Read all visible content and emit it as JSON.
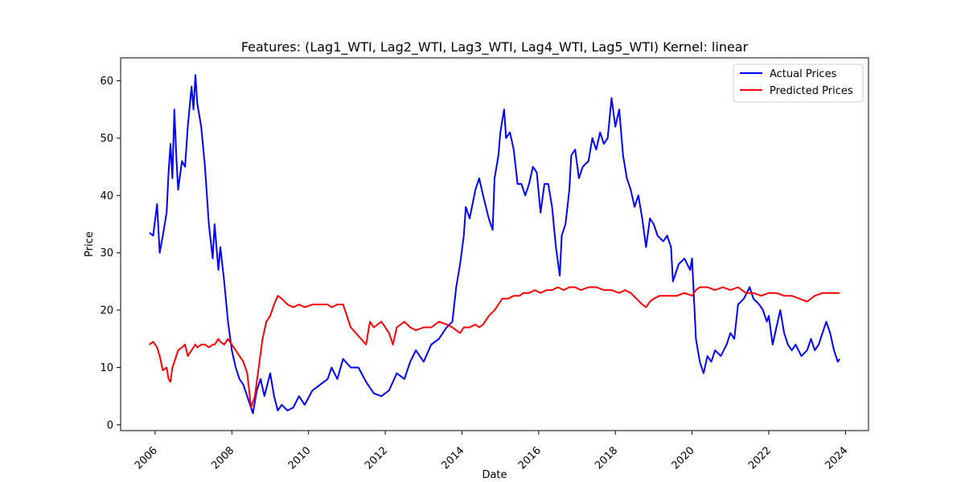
{
  "chart_data": {
    "type": "line",
    "title": "Features: (Lag1_WTI, Lag2_WTI, Lag3_WTI, Lag4_WTI, Lag5_WTI) Kernel: linear",
    "xlabel": "Date",
    "ylabel": "Price",
    "xlim": [
      2005.1,
      2024.6
    ],
    "ylim": [
      -1,
      64
    ],
    "x_ticks": [
      2006,
      2008,
      2010,
      2012,
      2014,
      2016,
      2018,
      2020,
      2022,
      2024
    ],
    "x_tick_labels": [
      "2006",
      "2008",
      "2010",
      "2012",
      "2014",
      "2016",
      "2018",
      "2020",
      "2022",
      "2024"
    ],
    "y_ticks": [
      0,
      10,
      20,
      30,
      40,
      50,
      60
    ],
    "y_tick_labels": [
      "0",
      "10",
      "20",
      "30",
      "40",
      "50",
      "60"
    ],
    "grid": false,
    "legend_position": "top-right",
    "series": [
      {
        "name": "Actual Prices",
        "color": "#0000ff",
        "points": [
          [
            2005.85,
            33.5
          ],
          [
            2005.95,
            33
          ],
          [
            2006.05,
            38.5
          ],
          [
            2006.12,
            30
          ],
          [
            2006.2,
            33
          ],
          [
            2006.3,
            37
          ],
          [
            2006.35,
            44
          ],
          [
            2006.4,
            49
          ],
          [
            2006.45,
            43
          ],
          [
            2006.5,
            55
          ],
          [
            2006.55,
            47
          ],
          [
            2006.6,
            41
          ],
          [
            2006.7,
            46
          ],
          [
            2006.78,
            45
          ],
          [
            2006.85,
            52
          ],
          [
            2006.95,
            59
          ],
          [
            2007.0,
            55
          ],
          [
            2007.05,
            61
          ],
          [
            2007.1,
            56
          ],
          [
            2007.2,
            52
          ],
          [
            2007.3,
            45
          ],
          [
            2007.4,
            35
          ],
          [
            2007.5,
            29
          ],
          [
            2007.55,
            35
          ],
          [
            2007.65,
            27
          ],
          [
            2007.7,
            31
          ],
          [
            2007.8,
            25
          ],
          [
            2007.9,
            18
          ],
          [
            2008.0,
            13
          ],
          [
            2008.1,
            10
          ],
          [
            2008.2,
            8
          ],
          [
            2008.3,
            7
          ],
          [
            2008.4,
            5
          ],
          [
            2008.55,
            2
          ],
          [
            2008.65,
            6
          ],
          [
            2008.75,
            8
          ],
          [
            2008.85,
            5
          ],
          [
            2009.0,
            9
          ],
          [
            2009.1,
            5
          ],
          [
            2009.2,
            2.5
          ],
          [
            2009.3,
            3.5
          ],
          [
            2009.45,
            2.5
          ],
          [
            2009.6,
            3
          ],
          [
            2009.75,
            5
          ],
          [
            2009.9,
            3.5
          ],
          [
            2010.1,
            6
          ],
          [
            2010.3,
            7
          ],
          [
            2010.5,
            8
          ],
          [
            2010.6,
            10
          ],
          [
            2010.75,
            8
          ],
          [
            2010.9,
            11.5
          ],
          [
            2011.1,
            10
          ],
          [
            2011.3,
            10
          ],
          [
            2011.5,
            7.5
          ],
          [
            2011.7,
            5.5
          ],
          [
            2011.9,
            5
          ],
          [
            2012.1,
            6
          ],
          [
            2012.3,
            9
          ],
          [
            2012.5,
            8
          ],
          [
            2012.65,
            11
          ],
          [
            2012.8,
            13
          ],
          [
            2013.0,
            11
          ],
          [
            2013.2,
            14
          ],
          [
            2013.4,
            15
          ],
          [
            2013.6,
            17
          ],
          [
            2013.75,
            18
          ],
          [
            2013.85,
            24
          ],
          [
            2013.95,
            28
          ],
          [
            2014.05,
            33
          ],
          [
            2014.1,
            38
          ],
          [
            2014.2,
            36
          ],
          [
            2014.35,
            41
          ],
          [
            2014.45,
            43
          ],
          [
            2014.55,
            40
          ],
          [
            2014.7,
            36
          ],
          [
            2014.8,
            34
          ],
          [
            2014.85,
            43
          ],
          [
            2014.95,
            47
          ],
          [
            2015.0,
            51
          ],
          [
            2015.05,
            53
          ],
          [
            2015.1,
            55
          ],
          [
            2015.15,
            50
          ],
          [
            2015.25,
            51
          ],
          [
            2015.35,
            48
          ],
          [
            2015.45,
            42
          ],
          [
            2015.55,
            42
          ],
          [
            2015.65,
            40
          ],
          [
            2015.75,
            42
          ],
          [
            2015.85,
            45
          ],
          [
            2015.95,
            44
          ],
          [
            2016.05,
            37
          ],
          [
            2016.15,
            42
          ],
          [
            2016.25,
            42
          ],
          [
            2016.35,
            38
          ],
          [
            2016.45,
            31
          ],
          [
            2016.55,
            26
          ],
          [
            2016.6,
            33
          ],
          [
            2016.7,
            35
          ],
          [
            2016.8,
            41
          ],
          [
            2016.85,
            47
          ],
          [
            2016.95,
            48
          ],
          [
            2017.05,
            43
          ],
          [
            2017.15,
            45
          ],
          [
            2017.3,
            46
          ],
          [
            2017.4,
            50
          ],
          [
            2017.5,
            48
          ],
          [
            2017.6,
            51
          ],
          [
            2017.7,
            49
          ],
          [
            2017.8,
            50
          ],
          [
            2017.9,
            57
          ],
          [
            2018.0,
            52
          ],
          [
            2018.1,
            55
          ],
          [
            2018.2,
            47
          ],
          [
            2018.3,
            43
          ],
          [
            2018.4,
            41
          ],
          [
            2018.5,
            38
          ],
          [
            2018.6,
            40
          ],
          [
            2018.7,
            36
          ],
          [
            2018.8,
            31
          ],
          [
            2018.9,
            36
          ],
          [
            2019.0,
            35
          ],
          [
            2019.1,
            33
          ],
          [
            2019.25,
            32
          ],
          [
            2019.35,
            33
          ],
          [
            2019.45,
            31
          ],
          [
            2019.5,
            25
          ],
          [
            2019.65,
            28
          ],
          [
            2019.8,
            29
          ],
          [
            2019.95,
            27
          ],
          [
            2020.0,
            29
          ],
          [
            2020.1,
            15
          ],
          [
            2020.2,
            11
          ],
          [
            2020.3,
            9
          ],
          [
            2020.4,
            12
          ],
          [
            2020.5,
            11
          ],
          [
            2020.6,
            13
          ],
          [
            2020.75,
            12
          ],
          [
            2020.9,
            14
          ],
          [
            2021.0,
            16
          ],
          [
            2021.1,
            15
          ],
          [
            2021.2,
            21
          ],
          [
            2021.35,
            22
          ],
          [
            2021.5,
            24
          ],
          [
            2021.6,
            22
          ],
          [
            2021.75,
            21
          ],
          [
            2021.85,
            20
          ],
          [
            2021.95,
            18
          ],
          [
            2022.0,
            19
          ],
          [
            2022.1,
            14
          ],
          [
            2022.2,
            17
          ],
          [
            2022.3,
            20
          ],
          [
            2022.4,
            16
          ],
          [
            2022.5,
            14
          ],
          [
            2022.6,
            13
          ],
          [
            2022.7,
            14
          ],
          [
            2022.85,
            12
          ],
          [
            2023.0,
            13
          ],
          [
            2023.1,
            15
          ],
          [
            2023.2,
            13
          ],
          [
            2023.3,
            14
          ],
          [
            2023.4,
            16
          ],
          [
            2023.5,
            18
          ],
          [
            2023.6,
            16
          ],
          [
            2023.7,
            13
          ],
          [
            2023.8,
            11
          ],
          [
            2023.85,
            11.5
          ]
        ]
      },
      {
        "name": "Predicted Prices",
        "color": "#ff0000",
        "points": [
          [
            2005.85,
            14
          ],
          [
            2005.95,
            14.5
          ],
          [
            2006.05,
            13.5
          ],
          [
            2006.12,
            12
          ],
          [
            2006.2,
            9.5
          ],
          [
            2006.3,
            10
          ],
          [
            2006.35,
            8
          ],
          [
            2006.4,
            7.5
          ],
          [
            2006.45,
            10
          ],
          [
            2006.5,
            11
          ],
          [
            2006.55,
            12
          ],
          [
            2006.6,
            13
          ],
          [
            2006.7,
            13.5
          ],
          [
            2006.78,
            14
          ],
          [
            2006.85,
            12
          ],
          [
            2006.95,
            13
          ],
          [
            2007.0,
            13.5
          ],
          [
            2007.05,
            14
          ],
          [
            2007.1,
            13.5
          ],
          [
            2007.2,
            14
          ],
          [
            2007.3,
            14
          ],
          [
            2007.4,
            13.5
          ],
          [
            2007.5,
            14
          ],
          [
            2007.55,
            14
          ],
          [
            2007.65,
            15
          ],
          [
            2007.7,
            14.5
          ],
          [
            2007.8,
            14
          ],
          [
            2007.9,
            15
          ],
          [
            2008.0,
            14
          ],
          [
            2008.1,
            13
          ],
          [
            2008.2,
            12
          ],
          [
            2008.3,
            11
          ],
          [
            2008.4,
            9
          ],
          [
            2008.5,
            3
          ],
          [
            2008.6,
            5
          ],
          [
            2008.7,
            10
          ],
          [
            2008.8,
            15
          ],
          [
            2008.9,
            18
          ],
          [
            2009.0,
            19
          ],
          [
            2009.1,
            21
          ],
          [
            2009.2,
            22.5
          ],
          [
            2009.3,
            22
          ],
          [
            2009.45,
            21
          ],
          [
            2009.6,
            20.5
          ],
          [
            2009.75,
            21
          ],
          [
            2009.9,
            20.5
          ],
          [
            2010.1,
            21
          ],
          [
            2010.3,
            21
          ],
          [
            2010.5,
            21
          ],
          [
            2010.6,
            20.5
          ],
          [
            2010.75,
            21
          ],
          [
            2010.9,
            21
          ],
          [
            2011.1,
            17
          ],
          [
            2011.3,
            15.5
          ],
          [
            2011.5,
            14
          ],
          [
            2011.6,
            18
          ],
          [
            2011.7,
            17
          ],
          [
            2011.9,
            18
          ],
          [
            2012.1,
            16
          ],
          [
            2012.2,
            14
          ],
          [
            2012.3,
            17
          ],
          [
            2012.5,
            18
          ],
          [
            2012.65,
            17
          ],
          [
            2012.8,
            16.5
          ],
          [
            2013.0,
            17
          ],
          [
            2013.2,
            17
          ],
          [
            2013.4,
            18
          ],
          [
            2013.6,
            17.5
          ],
          [
            2013.75,
            17
          ],
          [
            2013.85,
            16.5
          ],
          [
            2013.95,
            16
          ],
          [
            2014.05,
            17
          ],
          [
            2014.2,
            17
          ],
          [
            2014.35,
            17.5
          ],
          [
            2014.45,
            17
          ],
          [
            2014.55,
            17.5
          ],
          [
            2014.7,
            19
          ],
          [
            2014.85,
            20
          ],
          [
            2014.95,
            21
          ],
          [
            2015.05,
            22
          ],
          [
            2015.2,
            22
          ],
          [
            2015.35,
            22.5
          ],
          [
            2015.5,
            22.5
          ],
          [
            2015.6,
            23
          ],
          [
            2015.75,
            23
          ],
          [
            2015.9,
            23.5
          ],
          [
            2016.05,
            23
          ],
          [
            2016.2,
            23.5
          ],
          [
            2016.35,
            23.5
          ],
          [
            2016.5,
            24
          ],
          [
            2016.65,
            23.5
          ],
          [
            2016.8,
            24
          ],
          [
            2016.95,
            24
          ],
          [
            2017.1,
            23.5
          ],
          [
            2017.3,
            24
          ],
          [
            2017.5,
            24
          ],
          [
            2017.7,
            23.5
          ],
          [
            2017.9,
            23.5
          ],
          [
            2018.1,
            23
          ],
          [
            2018.25,
            23.5
          ],
          [
            2018.4,
            23
          ],
          [
            2018.55,
            22
          ],
          [
            2018.7,
            21
          ],
          [
            2018.8,
            20.5
          ],
          [
            2018.9,
            21.5
          ],
          [
            2019.0,
            22
          ],
          [
            2019.15,
            22.5
          ],
          [
            2019.3,
            22.5
          ],
          [
            2019.45,
            22.5
          ],
          [
            2019.6,
            22.5
          ],
          [
            2019.8,
            23
          ],
          [
            2020.0,
            22.5
          ],
          [
            2020.1,
            23.5
          ],
          [
            2020.2,
            24
          ],
          [
            2020.4,
            24
          ],
          [
            2020.6,
            23.5
          ],
          [
            2020.8,
            24
          ],
          [
            2021.0,
            23.5
          ],
          [
            2021.2,
            24
          ],
          [
            2021.4,
            23
          ],
          [
            2021.6,
            23
          ],
          [
            2021.8,
            22.5
          ],
          [
            2022.0,
            23
          ],
          [
            2022.2,
            23
          ],
          [
            2022.4,
            22.5
          ],
          [
            2022.6,
            22.5
          ],
          [
            2022.8,
            22
          ],
          [
            2023.0,
            21.5
          ],
          [
            2023.2,
            22.5
          ],
          [
            2023.4,
            23
          ],
          [
            2023.6,
            23
          ],
          [
            2023.85,
            23
          ]
        ]
      }
    ]
  }
}
